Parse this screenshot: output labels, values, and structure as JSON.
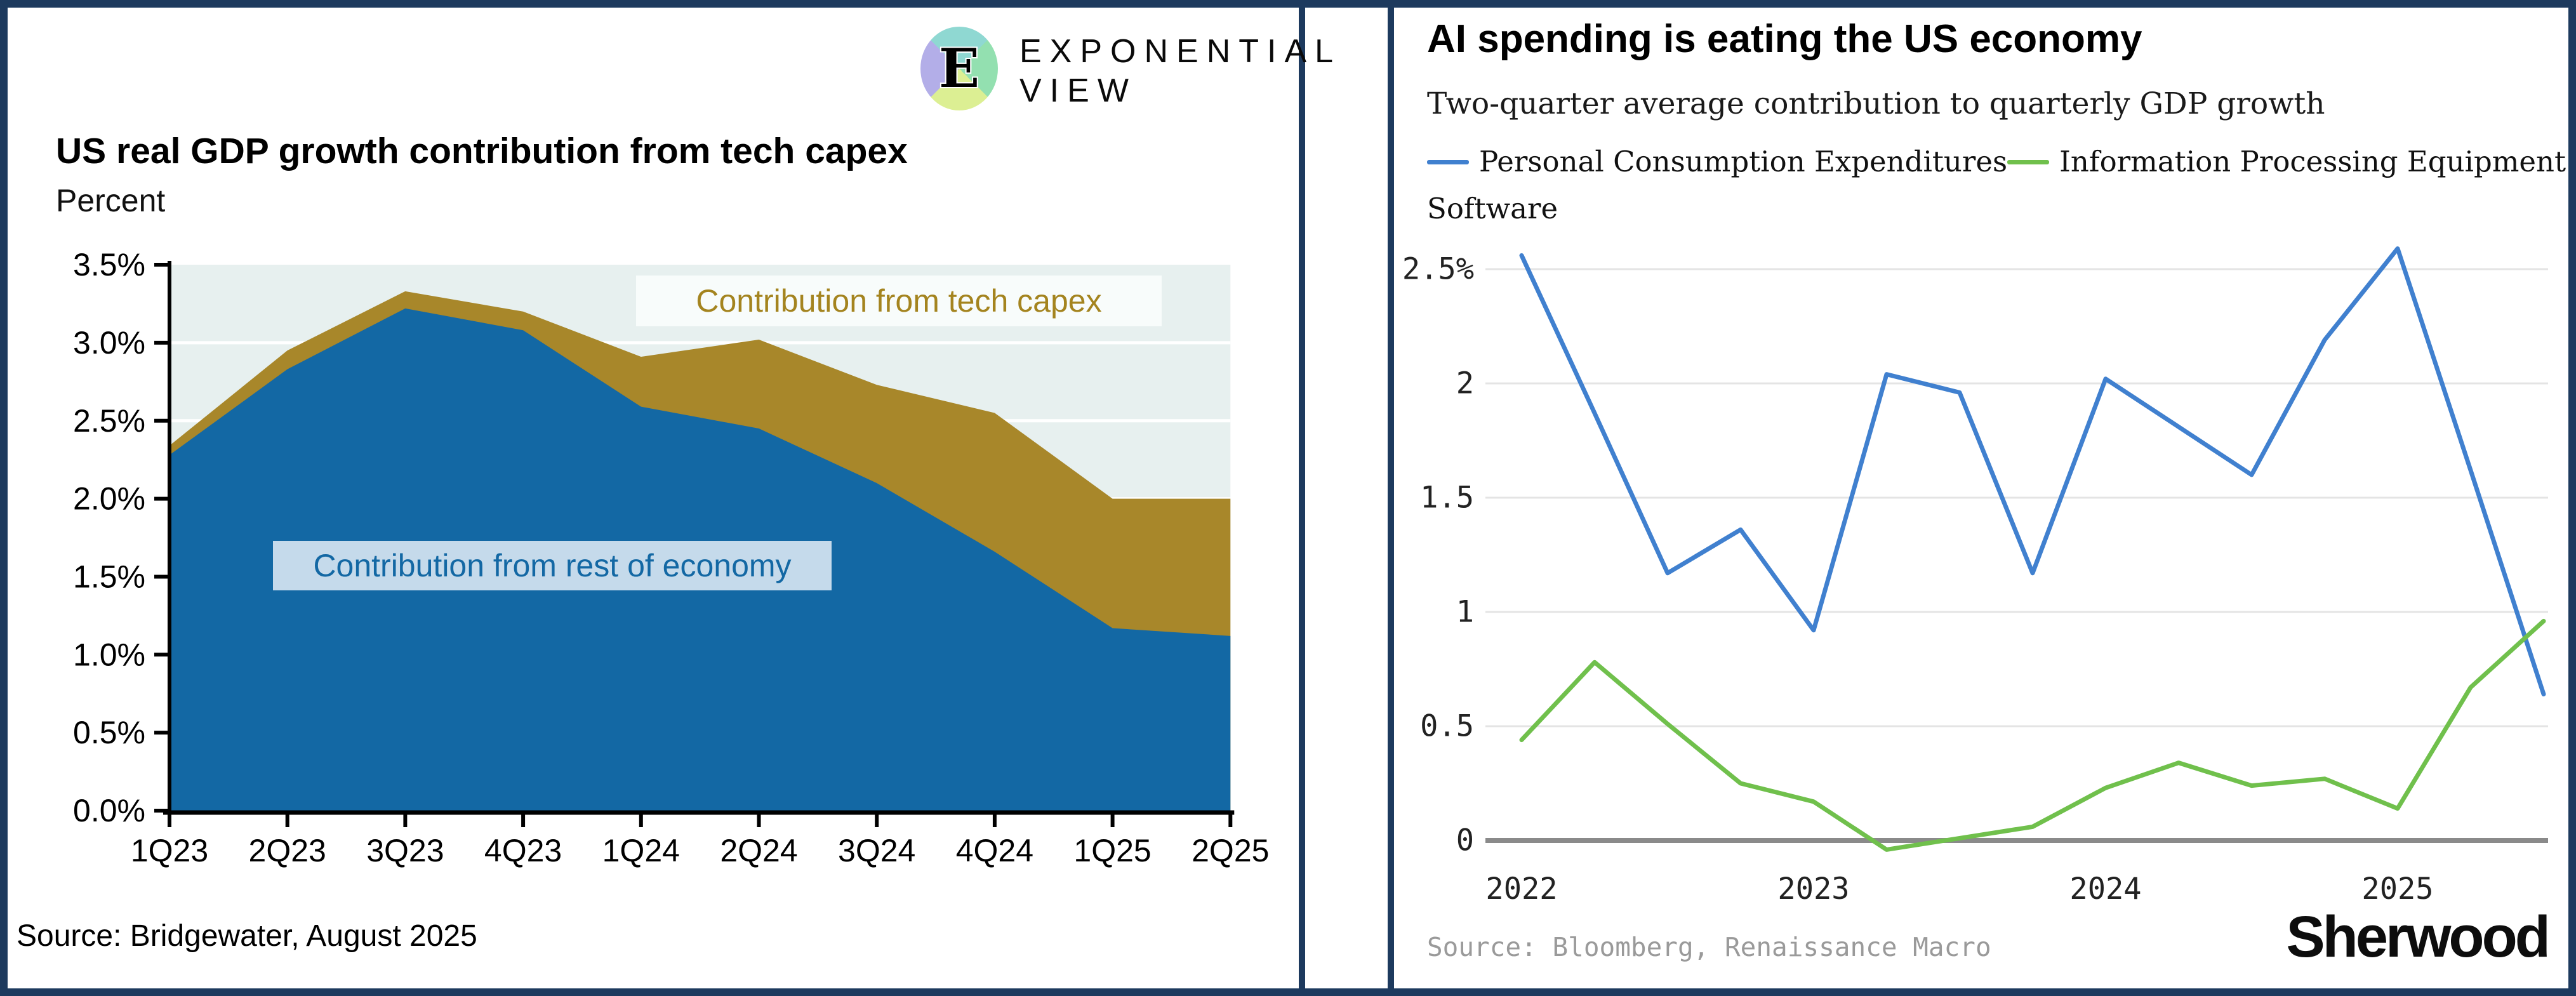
{
  "colors": {
    "border_navy": "#1d3a5e",
    "left_area_blue": "#1368a4",
    "left_area_gold": "#a8872a",
    "left_plot_bg": "#e7f0ef",
    "right_line_blue": "#4080cf",
    "right_line_green": "#70c04c",
    "right_grid": "#e4e4e4",
    "right_axis": "#8a8a8a"
  },
  "left_panel": {
    "logo": {
      "letter": "E",
      "word_line1": "EXPONENTIAL",
      "word_line2": "VIEW"
    },
    "title": "US real GDP growth contribution from tech capex",
    "subtitle": "Percent",
    "source": "Source: Bridgewater, August 2025",
    "annotations": {
      "tech": "Contribution from tech capex",
      "rest": "Contribution from rest of economy"
    }
  },
  "right_panel": {
    "title": "AI spending is eating the US economy",
    "subtitle": "Two-quarter average contribution to quarterly GDP growth",
    "legend": [
      {
        "label": "Personal Consumption Expenditures",
        "color": "#4080cf"
      },
      {
        "label": "Information Processing Equipment +",
        "label_wrap": "Software",
        "color": "#70c04c"
      }
    ],
    "source": "Source: Bloomberg, Renaissance Macro",
    "brand": "Sherwood"
  },
  "chart_data": [
    {
      "type": "area",
      "stacked": true,
      "title": "US real GDP growth contribution from tech capex",
      "ylabel": "Percent",
      "ylim": [
        0,
        3.5
      ],
      "yticks": [
        "3.5%",
        "3.0%",
        "2.5%",
        "2.0%",
        "1.5%",
        "1.0%",
        "0.5%",
        "0.0%"
      ],
      "categories": [
        "1Q23",
        "2Q23",
        "3Q23",
        "4Q23",
        "1Q24",
        "2Q24",
        "3Q24",
        "4Q24",
        "1Q25",
        "2Q25"
      ],
      "series": [
        {
          "name": "Contribution from rest of economy",
          "color": "#1368a4",
          "values": [
            2.28,
            2.83,
            3.22,
            3.08,
            2.59,
            2.45,
            2.1,
            1.66,
            1.17,
            1.12
          ]
        },
        {
          "name": "Contribution from tech capex",
          "color": "#a8872a",
          "values": [
            0.06,
            0.12,
            0.11,
            0.12,
            0.32,
            0.57,
            0.63,
            0.89,
            0.83,
            0.88
          ]
        }
      ],
      "stack_totals": [
        2.34,
        2.95,
        3.33,
        3.2,
        2.91,
        3.02,
        2.73,
        2.55,
        2.0,
        2.0
      ],
      "grid": "white horizontal lines every 0.5 on light plot background"
    },
    {
      "type": "line",
      "title": "AI spending is eating the US economy",
      "subtitle": "Two-quarter average contribution to quarterly GDP growth",
      "ylim": [
        -0.1,
        2.65
      ],
      "yticks": [
        "2.5%",
        "2",
        "1.5",
        "1",
        "0.5",
        "0"
      ],
      "ytick_values": [
        2.5,
        2,
        1.5,
        1,
        0.5,
        0
      ],
      "xticks": [
        "2022",
        "2023",
        "2024",
        "2025"
      ],
      "x_quarters": [
        "2022Q1",
        "2022Q2",
        "2022Q3",
        "2022Q4",
        "2023Q1",
        "2023Q2",
        "2023Q3",
        "2023Q4",
        "2024Q1",
        "2024Q2",
        "2024Q3",
        "2024Q4",
        "2025Q1",
        "2025Q2",
        "2025Q3"
      ],
      "series": [
        {
          "name": "Personal Consumption Expenditures",
          "color": "#4080cf",
          "values": [
            2.56,
            1.87,
            1.17,
            1.36,
            0.92,
            2.04,
            1.96,
            1.17,
            2.02,
            1.81,
            1.6,
            2.19,
            2.59,
            1.62,
            0.64
          ]
        },
        {
          "name": "Information Processing Equipment + Software",
          "color": "#70c04c",
          "values": [
            0.44,
            0.78,
            0.51,
            0.25,
            0.17,
            -0.04,
            0.01,
            0.06,
            0.23,
            0.34,
            0.24,
            0.27,
            0.14,
            0.67,
            0.96
          ]
        }
      ],
      "legend_position": "top",
      "grid": "light gray horizontal lines, dark gray zero axis"
    }
  ]
}
